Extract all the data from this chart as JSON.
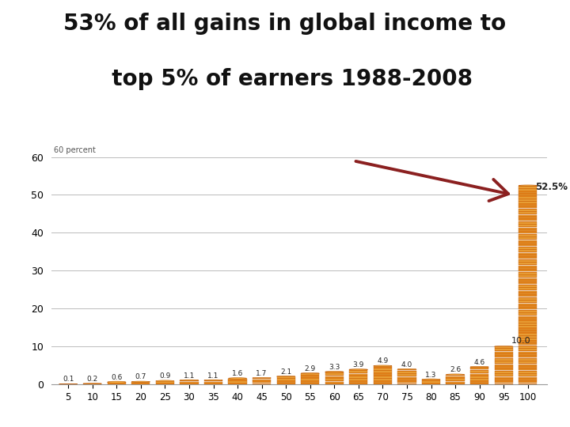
{
  "title_line1": "53% of all gains in global income to",
  "title_line2": "  top 5% of earners 1988-2008",
  "x_ticks": [
    5,
    10,
    15,
    20,
    25,
    30,
    35,
    40,
    45,
    50,
    55,
    60,
    65,
    70,
    75,
    80,
    85,
    90,
    95,
    100
  ],
  "categories": [
    5,
    10,
    15,
    20,
    25,
    30,
    35,
    40,
    45,
    50,
    55,
    60,
    65,
    70,
    75,
    80,
    85,
    90,
    95,
    100
  ],
  "values": [
    0.1,
    0.2,
    0.6,
    0.7,
    0.9,
    1.1,
    1.1,
    1.6,
    1.7,
    2.1,
    2.9,
    3.3,
    3.9,
    4.9,
    4.0,
    1.3,
    2.6,
    4.6,
    10.0,
    52.5
  ],
  "labels": [
    "0.1",
    "0.2",
    "0.6",
    "0.7",
    "0.9",
    "1.1",
    "1.1",
    "1.6",
    "1.7",
    "2.1",
    "2.9",
    "3.3",
    "3.9",
    "4.9",
    "4.0",
    "1.3",
    "2.6",
    "4.6",
    "10.0",
    "52.5%"
  ],
  "bar_color_main": "#E8871A",
  "bar_color_edge": "#C06010",
  "bar_color_light": "#F5B040",
  "ylim": [
    0,
    62
  ],
  "yticks": [
    0,
    10,
    20,
    30,
    40,
    50,
    60
  ],
  "y_label_text": "60 percent",
  "arrow_color": "#8B2020",
  "background_color": "#FFFFFF",
  "title_fontsize": 20,
  "bar_width": 3.8
}
